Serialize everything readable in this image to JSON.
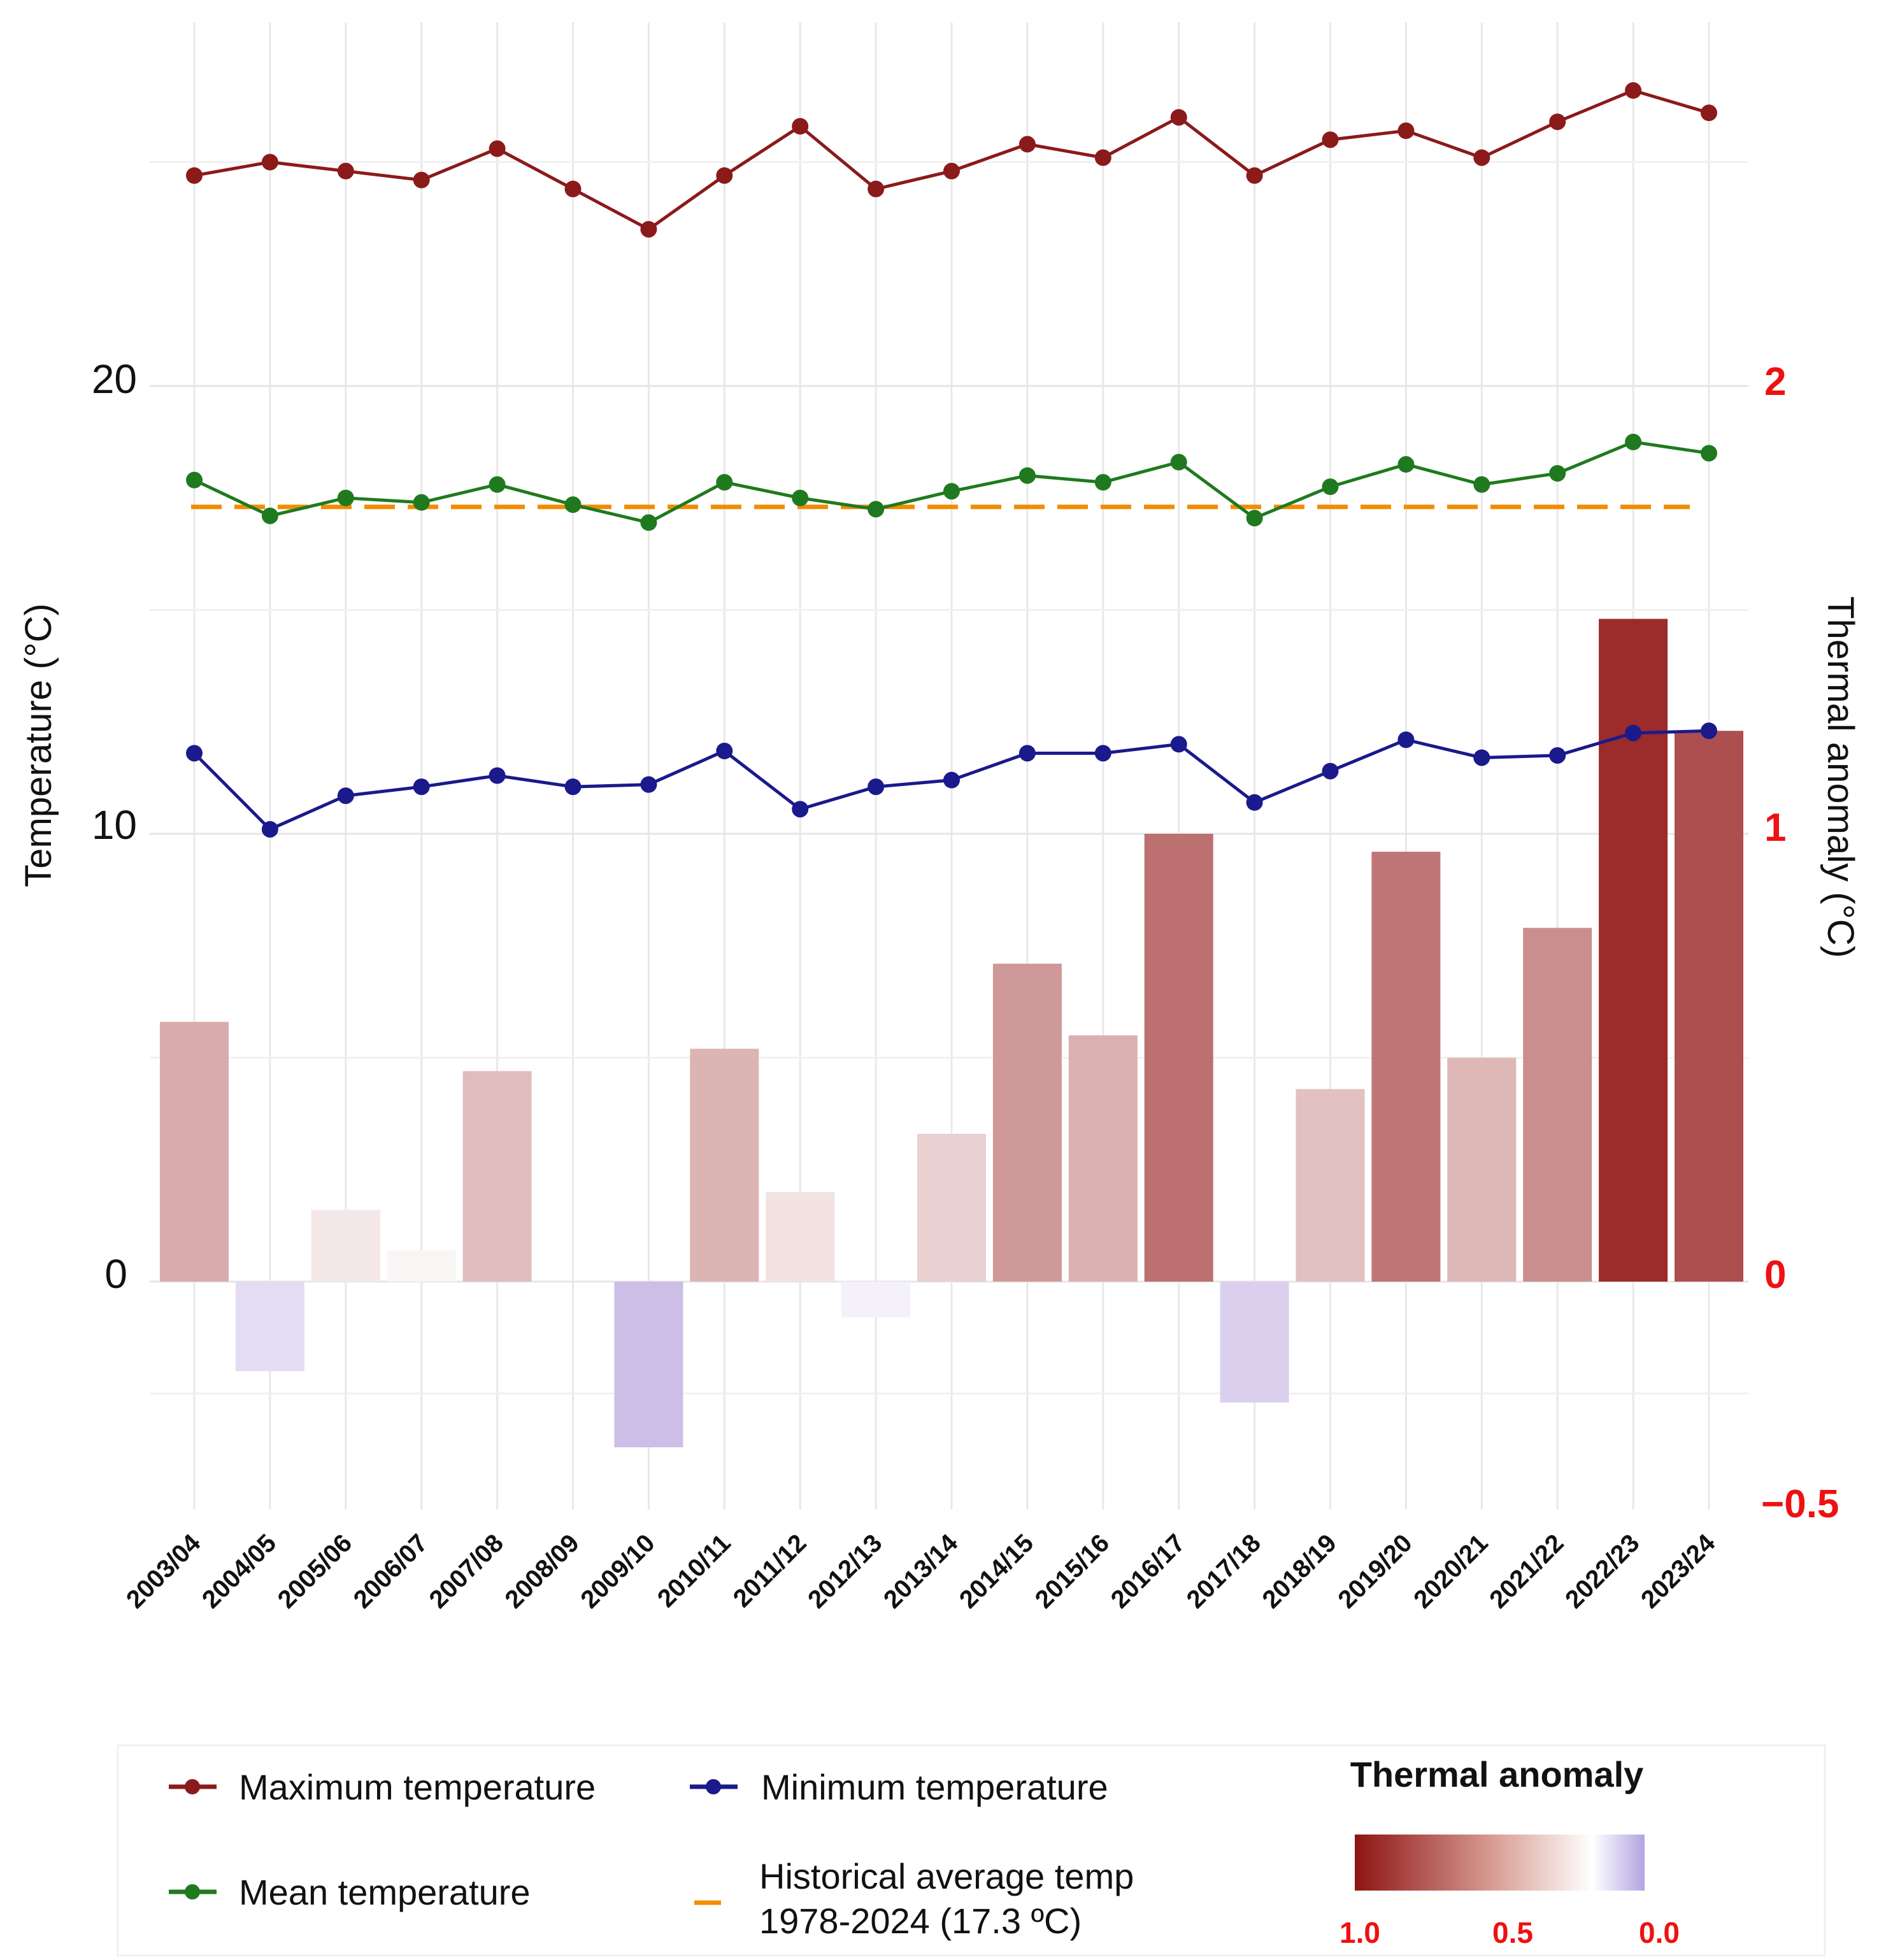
{
  "chart_data": {
    "type": "bar+line",
    "categories": [
      "2003/04",
      "2004/05",
      "2005/06",
      "2006/07",
      "2007/08",
      "2008/09",
      "2009/10",
      "2010/11",
      "2011/12",
      "2012/13",
      "2013/14",
      "2014/15",
      "2015/16",
      "2016/17",
      "2017/18",
      "2018/19",
      "2019/20",
      "2020/21",
      "2021/22",
      "2022/23",
      "2023/24"
    ],
    "series": [
      {
        "name": "Maximum temperature",
        "type": "line",
        "axis": "left",
        "color": "#8b1a1a",
        "values": [
          24.7,
          25.0,
          24.8,
          24.6,
          25.3,
          24.4,
          23.5,
          24.7,
          25.8,
          24.4,
          24.8,
          25.4,
          25.1,
          26.0,
          24.7,
          25.5,
          25.7,
          25.1,
          25.9,
          26.6,
          26.1
        ]
      },
      {
        "name": "Mean temperature",
        "type": "line",
        "axis": "left",
        "color": "#1f7a1f",
        "values": [
          17.9,
          17.1,
          17.5,
          17.4,
          17.8,
          17.35,
          16.95,
          17.85,
          17.5,
          17.25,
          17.65,
          18.0,
          17.85,
          18.3,
          17.05,
          17.75,
          18.25,
          17.8,
          18.05,
          18.75,
          18.5
        ]
      },
      {
        "name": "Minimum temperature",
        "type": "line",
        "axis": "left",
        "color": "#1a1a8c",
        "values": [
          11.8,
          10.1,
          10.85,
          11.05,
          11.3,
          11.05,
          11.1,
          11.85,
          10.55,
          11.05,
          11.2,
          11.8,
          11.8,
          12.0,
          10.7,
          11.4,
          12.1,
          11.7,
          11.75,
          12.25,
          12.3
        ]
      },
      {
        "name": "Thermal anomaly",
        "type": "bar",
        "axis": "right",
        "values": [
          0.58,
          -0.2,
          0.16,
          0.07,
          0.47,
          0.0,
          -0.37,
          0.52,
          0.2,
          -0.08,
          0.33,
          0.71,
          0.55,
          1.0,
          -0.27,
          0.43,
          0.96,
          0.5,
          0.79,
          1.48,
          1.23
        ]
      }
    ],
    "reference_line": {
      "name": "Historical average temp 1978-2024 (17.3 ºC)",
      "value": 17.3,
      "color": "#f28c00",
      "style": "dashed"
    },
    "ylabel": "Temperature (°C)",
    "y2label": "Thermal anomaly (°C)",
    "yticks": [
      "0",
      "10",
      "20"
    ],
    "y2ticks": [
      "−0.5",
      "0",
      "1",
      "2"
    ],
    "ylim": [
      -5,
      28
    ],
    "y2lim": [
      -0.5,
      2.8
    ],
    "grid": true,
    "colorscale": {
      "title": "Thermal anomaly",
      "ticks": [
        "1.0",
        "0.5",
        "0.0"
      ],
      "colors": [
        "#9b1c1c",
        "#ffffff",
        "#b8a8e0"
      ]
    }
  },
  "legend": {
    "max_label": "Maximum temperature",
    "min_label": "Minimum temperature",
    "mean_label": "Mean temperature",
    "hist_line1": "Historical average temp",
    "hist_line2": "1978-2024 (17.3 ºC)",
    "anomaly_title": "Thermal anomaly"
  }
}
